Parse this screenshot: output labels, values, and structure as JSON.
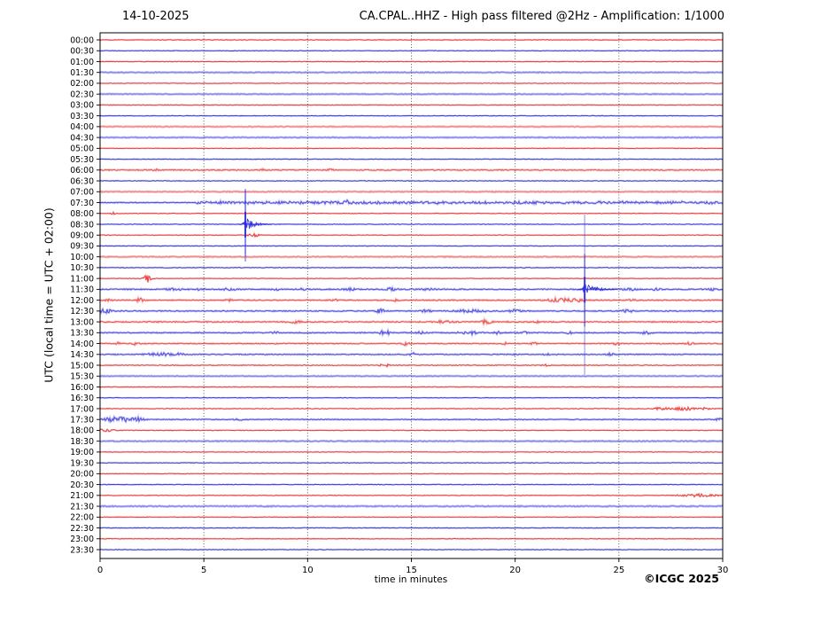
{
  "header": {
    "date": "14-10-2025",
    "title": "CA.CPAL..HHZ - High pass filtered @2Hz - Amplification: 1/1000"
  },
  "footer": {
    "copyright": "©ICGC 2025"
  },
  "chart_data": {
    "type": "line",
    "subtype": "helicorder-seismogram",
    "title": "CA.CPAL..HHZ - High pass filtered @2Hz - Amplification: 1/1000",
    "date": "14-10-2025",
    "xlabel": "time in minutes",
    "ylabel": "UTC (local time = UTC + 02:00)",
    "x_range": [
      0,
      30
    ],
    "x_ticks": [
      0,
      5,
      10,
      15,
      20,
      25,
      30
    ],
    "grid_minutes": [
      5,
      10,
      15,
      20,
      25
    ],
    "minutes_per_row": 30,
    "colors": {
      "red_trace": "#e62e2e",
      "blue_trace": "#2b2bd9",
      "grid": "#444444",
      "axis": "#000000",
      "background": "#ffffff"
    },
    "legend": "rows alternate red (hour) and blue (half hour), UTC labels",
    "rows": [
      {
        "label": "00:00",
        "color": "red",
        "style": "normal",
        "noise": 0.3,
        "events": []
      },
      {
        "label": "00:30",
        "color": "blue",
        "style": "normal",
        "noise": 0.3,
        "events": []
      },
      {
        "label": "01:00",
        "color": "red",
        "style": "normal",
        "noise": 0.3,
        "events": []
      },
      {
        "label": "01:30",
        "color": "blue",
        "style": "light",
        "noise": 0.4,
        "events": []
      },
      {
        "label": "02:00",
        "color": "red",
        "style": "normal",
        "noise": 0.3,
        "events": []
      },
      {
        "label": "02:30",
        "color": "blue",
        "style": "light",
        "noise": 0.4,
        "events": []
      },
      {
        "label": "03:00",
        "color": "red",
        "style": "normal",
        "noise": 0.3,
        "events": []
      },
      {
        "label": "03:30",
        "color": "blue",
        "style": "normal",
        "noise": 0.3,
        "events": []
      },
      {
        "label": "04:00",
        "color": "red",
        "style": "light",
        "noise": 0.4,
        "events": []
      },
      {
        "label": "04:30",
        "color": "blue",
        "style": "light",
        "noise": 0.4,
        "events": []
      },
      {
        "label": "05:00",
        "color": "red",
        "style": "normal",
        "noise": 0.3,
        "events": []
      },
      {
        "label": "05:30",
        "color": "blue",
        "style": "normal",
        "noise": 0.3,
        "events": []
      },
      {
        "label": "06:00",
        "color": "red",
        "style": "fuzzy",
        "noise": 0.5,
        "events": [
          [
            2.7,
            1.1,
            0.15
          ],
          [
            7.9,
            1.0,
            0.15
          ],
          [
            11.1,
            1.0,
            0.15
          ]
        ]
      },
      {
        "label": "06:30",
        "color": "blue",
        "style": "normal",
        "noise": 0.35,
        "events": []
      },
      {
        "label": "07:00",
        "color": "red",
        "style": "light",
        "noise": 0.45,
        "events": []
      },
      {
        "label": "07:30",
        "color": "blue",
        "style": "fuzzy",
        "noise": 0.4,
        "band": [
          4.6,
          30,
          0.9
        ],
        "events": [
          [
            11.9,
            1.8,
            0.2
          ],
          [
            16.5,
            1.2,
            0.2
          ]
        ]
      },
      {
        "label": "08:00",
        "color": "red",
        "style": "normal",
        "noise": 0.3,
        "events": [
          [
            0.64,
            1.4,
            0.12
          ]
        ]
      },
      {
        "label": "08:30",
        "color": "blue",
        "style": "normal",
        "noise": 0.3,
        "events": []
      },
      {
        "label": "09:00",
        "color": "red",
        "style": "normal",
        "noise": 0.3,
        "events": [
          [
            7.4,
            1.6,
            0.3
          ]
        ]
      },
      {
        "label": "09:30",
        "color": "blue",
        "style": "normal",
        "noise": 0.3,
        "events": []
      },
      {
        "label": "10:00",
        "color": "red",
        "style": "light",
        "noise": 0.45,
        "events": []
      },
      {
        "label": "10:30",
        "color": "blue",
        "style": "normal",
        "noise": 0.35,
        "events": []
      },
      {
        "label": "11:00",
        "color": "red",
        "style": "normal",
        "noise": 0.3,
        "events": [
          [
            2.26,
            4.5,
            0.22
          ]
        ]
      },
      {
        "label": "11:30",
        "color": "blue",
        "style": "fuzzy",
        "noise": 0.55,
        "events": [
          [
            3.6,
            1.4,
            0.4
          ],
          [
            4.8,
            1.0,
            0.2
          ],
          [
            6.2,
            1.4,
            0.3
          ],
          [
            8.5,
            1.0,
            0.2
          ],
          [
            9.7,
            1.0,
            0.2
          ],
          [
            12.0,
            1.4,
            0.3
          ],
          [
            14.0,
            1.4,
            0.3
          ],
          [
            15.7,
            1.1,
            0.4
          ],
          [
            25.5,
            1.4,
            0.3
          ],
          [
            26.8,
            1.0,
            0.2
          ],
          [
            29.5,
            1.0,
            0.2
          ]
        ]
      },
      {
        "label": "12:00",
        "color": "red",
        "style": "fuzzy",
        "noise": 0.5,
        "events": [
          [
            0.4,
            1.0,
            0.2
          ],
          [
            1.9,
            2.2,
            0.2
          ],
          [
            6.2,
            1.0,
            0.2
          ],
          [
            11.3,
            0.9,
            0.15
          ],
          [
            14.2,
            1.0,
            0.2
          ],
          [
            22.2,
            1.9,
            0.7
          ],
          [
            23.1,
            1.4,
            0.3
          ],
          [
            25.6,
            0.9,
            0.2
          ]
        ]
      },
      {
        "label": "12:30",
        "color": "blue",
        "style": "fuzzy",
        "noise": 0.5,
        "events": [
          [
            0.3,
            1.8,
            0.5
          ],
          [
            13.5,
            2.3,
            0.2
          ],
          [
            15.7,
            1.1,
            0.3
          ],
          [
            17.9,
            1.4,
            0.8
          ],
          [
            20.0,
            1.4,
            0.3
          ],
          [
            25.4,
            1.4,
            0.3
          ]
        ]
      },
      {
        "label": "13:00",
        "color": "red",
        "style": "fuzzy",
        "noise": 0.55,
        "events": [
          [
            9.4,
            1.4,
            0.3
          ],
          [
            16.6,
            1.4,
            0.4
          ],
          [
            18.6,
            2.3,
            0.25
          ],
          [
            21.0,
            0.9,
            0.2
          ]
        ]
      },
      {
        "label": "13:30",
        "color": "blue",
        "style": "fuzzy",
        "noise": 0.5,
        "events": [
          [
            8.4,
            1.1,
            0.2
          ],
          [
            13.7,
            3.2,
            0.25
          ],
          [
            15.5,
            1.4,
            0.25
          ],
          [
            17.8,
            1.6,
            0.5
          ],
          [
            19.2,
            1.4,
            0.2
          ],
          [
            20.5,
            1.1,
            0.2
          ],
          [
            22.6,
            1.1,
            0.2
          ],
          [
            26.3,
            1.4,
            0.25
          ]
        ]
      },
      {
        "label": "14:00",
        "color": "red",
        "style": "fuzzy",
        "noise": 0.45,
        "events": [
          [
            0.9,
            1.1,
            0.15
          ],
          [
            1.7,
            1.4,
            0.2
          ],
          [
            14.7,
            1.9,
            0.2
          ],
          [
            19.5,
            1.1,
            0.15
          ],
          [
            20.9,
            1.1,
            0.15
          ],
          [
            24.9,
            1.2,
            0.2
          ],
          [
            28.4,
            1.2,
            0.2
          ]
        ]
      },
      {
        "label": "14:30",
        "color": "blue",
        "style": "fuzzy",
        "noise": 0.45,
        "events": [
          [
            2.2,
            1.2,
            0.3
          ],
          [
            3.0,
            1.5,
            0.5
          ],
          [
            3.8,
            1.2,
            0.3
          ],
          [
            15.0,
            2.1,
            0.2
          ],
          [
            19.9,
            0.9,
            0.15
          ],
          [
            21.5,
            0.9,
            0.15
          ],
          [
            24.6,
            1.1,
            0.2
          ]
        ]
      },
      {
        "label": "15:00",
        "color": "red",
        "style": "normal",
        "noise": 0.4,
        "events": [
          [
            13.7,
            2.1,
            0.2
          ],
          [
            21.5,
            0.9,
            0.2
          ]
        ]
      },
      {
        "label": "15:30",
        "color": "blue",
        "style": "light",
        "noise": 0.4,
        "events": []
      },
      {
        "label": "16:00",
        "color": "red",
        "style": "normal",
        "noise": 0.3,
        "events": []
      },
      {
        "label": "16:30",
        "color": "blue",
        "style": "normal",
        "noise": 0.3,
        "events": []
      },
      {
        "label": "17:00",
        "color": "red",
        "style": "normal",
        "noise": 0.35,
        "events": [
          [
            27.0,
            1.2,
            0.5
          ],
          [
            27.9,
            1.4,
            0.3
          ],
          [
            28.3,
            2.1,
            0.3
          ],
          [
            29.1,
            1.1,
            0.3
          ]
        ]
      },
      {
        "label": "17:30",
        "color": "blue",
        "style": "fuzzy",
        "noise": 0.4,
        "events": [
          [
            0.5,
            1.9,
            0.3
          ],
          [
            1.1,
            2.3,
            0.6
          ],
          [
            1.8,
            1.7,
            0.3
          ],
          [
            6.7,
            1.2,
            0.25
          ],
          [
            29.8,
            1.2,
            0.2
          ]
        ]
      },
      {
        "label": "18:00",
        "color": "red",
        "style": "normal",
        "noise": 0.3,
        "events": [
          [
            0.25,
            1.4,
            0.5
          ]
        ]
      },
      {
        "label": "18:30",
        "color": "blue",
        "style": "light",
        "noise": 0.45,
        "events": []
      },
      {
        "label": "19:00",
        "color": "red",
        "style": "normal",
        "noise": 0.3,
        "events": []
      },
      {
        "label": "19:30",
        "color": "blue",
        "style": "normal",
        "noise": 0.3,
        "events": []
      },
      {
        "label": "20:00",
        "color": "red",
        "style": "normal",
        "noise": 0.3,
        "events": []
      },
      {
        "label": "20:30",
        "color": "blue",
        "style": "normal",
        "noise": 0.3,
        "events": []
      },
      {
        "label": "21:00",
        "color": "red",
        "style": "normal",
        "noise": 0.3,
        "events": [
          [
            28.8,
            1.5,
            0.9
          ]
        ]
      },
      {
        "label": "21:30",
        "color": "blue",
        "style": "light",
        "noise": 0.5,
        "events": []
      },
      {
        "label": "22:00",
        "color": "red",
        "style": "normal",
        "noise": 0.3,
        "events": []
      },
      {
        "label": "22:30",
        "color": "blue",
        "style": "normal",
        "noise": 0.3,
        "events": []
      },
      {
        "label": "23:00",
        "color": "red",
        "style": "normal",
        "noise": 0.3,
        "events": []
      },
      {
        "label": "23:30",
        "color": "blue",
        "style": "normal",
        "noise": 0.3,
        "events": []
      }
    ],
    "major_events": [
      {
        "row": 17,
        "t_min": 7.0,
        "amp": 8,
        "coda_min": 1.3,
        "vline_row_from": 13.9,
        "vline_row_to": 19.8,
        "description": "large clipped event on 08:30 trace at ~7 min"
      },
      {
        "row": 23,
        "t_min": 23.35,
        "amp": 8,
        "coda_min": 1.6,
        "vline_row_from": 16.1,
        "vline_row_to": 30.9,
        "description": "large clipped event on 11:30 trace at ~23.3 min"
      }
    ]
  }
}
